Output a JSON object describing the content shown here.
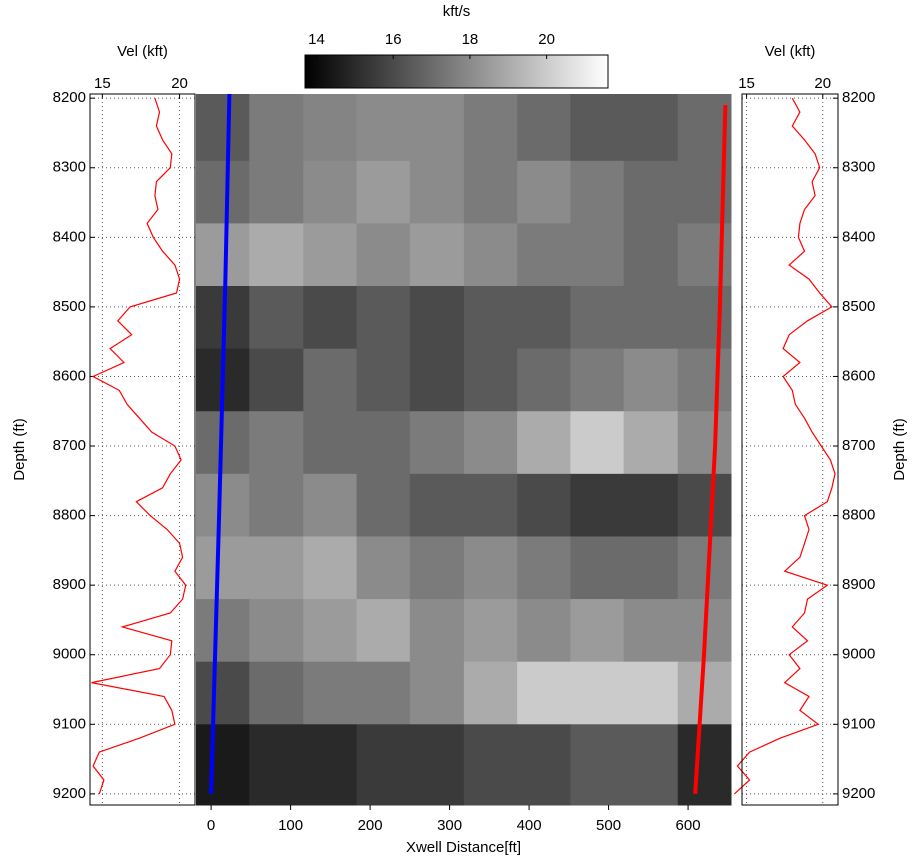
{
  "chart_data": [
    {
      "type": "line",
      "title": "Vel (kft)",
      "ylabel": "Depth (ft)",
      "xlim": [
        14.2,
        21.0
      ],
      "xticks": [
        15,
        20
      ],
      "ylim": [
        8194,
        9216
      ],
      "yticks": [
        8200,
        8300,
        8400,
        8500,
        8600,
        8700,
        8800,
        8900,
        9000,
        9100,
        9200
      ],
      "grid": true,
      "y": [
        8200,
        8220,
        8240,
        8260,
        8280,
        8300,
        8320,
        8340,
        8360,
        8380,
        8400,
        8420,
        8440,
        8460,
        8480,
        8500,
        8520,
        8540,
        8560,
        8580,
        8600,
        8620,
        8640,
        8660,
        8680,
        8700,
        8720,
        8740,
        8760,
        8780,
        8800,
        8820,
        8840,
        8860,
        8880,
        8900,
        8920,
        8940,
        8960,
        8980,
        9000,
        9020,
        9040,
        9060,
        9080,
        9100,
        9120,
        9140,
        9160,
        9180,
        9200
      ],
      "series": [
        {
          "color": "#ff0000",
          "values": [
            18.4,
            18.7,
            18.5,
            18.9,
            19.5,
            19.4,
            18.5,
            18.4,
            18.6,
            17.9,
            18.3,
            18.9,
            19.7,
            20.0,
            19.8,
            16.8,
            16.0,
            16.9,
            15.5,
            16.4,
            14.4,
            16.1,
            16.6,
            17.4,
            18.2,
            19.7,
            20.1,
            19.4,
            18.9,
            17.2,
            18.1,
            19.2,
            20.0,
            20.2,
            19.7,
            20.4,
            20.2,
            19.4,
            16.3,
            19.5,
            19.4,
            18.7,
            14.3,
            19.0,
            19.5,
            19.7,
            17.4,
            14.8,
            14.4,
            15.1,
            14.8
          ]
        }
      ]
    },
    {
      "type": "heatmap",
      "xlabel": "Xwell Distance[ft]",
      "xlim": [
        -19,
        654
      ],
      "xticks": [
        0,
        100,
        200,
        300,
        400,
        500,
        600
      ],
      "ylim": [
        8194,
        9216
      ],
      "x_edges": [
        -19,
        48,
        116,
        183,
        250,
        318,
        385,
        452,
        519,
        587,
        654
      ],
      "y_edges": [
        8194,
        8290,
        8380,
        8470,
        8560,
        8650,
        8740,
        8830,
        8920,
        9010,
        9100,
        9216
      ],
      "values": [
        [
          16.5,
          17.5,
          17.8,
          18,
          18,
          17.5,
          17,
          16.5,
          16.5,
          17
        ],
        [
          17,
          17.5,
          18,
          18.5,
          18,
          17.5,
          18,
          17.5,
          17,
          17
        ],
        [
          18.5,
          19,
          18.5,
          18,
          18.5,
          18,
          17.5,
          17.5,
          17,
          17.5
        ],
        [
          15.5,
          16.5,
          16,
          16.5,
          16,
          16.5,
          16.5,
          17,
          17,
          17
        ],
        [
          15,
          16,
          17,
          16.5,
          16,
          16.5,
          17,
          17.5,
          18,
          17.5
        ],
        [
          17,
          17.5,
          17,
          17,
          17.5,
          18,
          19,
          20,
          19,
          18
        ],
        [
          18,
          17.5,
          18,
          17,
          16.5,
          16.5,
          16,
          15.5,
          15.5,
          16
        ],
        [
          18.5,
          18.5,
          19,
          18,
          17.5,
          18,
          17.5,
          17,
          17,
          17.5
        ],
        [
          17.5,
          18,
          18.5,
          19,
          18,
          18.5,
          18,
          18.5,
          18,
          18
        ],
        [
          16,
          17,
          17.5,
          17.5,
          18,
          19,
          20,
          20,
          20,
          19
        ],
        [
          14.5,
          15,
          15,
          15.5,
          15.5,
          16,
          16,
          16.5,
          16.5,
          15
        ]
      ],
      "colorbar": {
        "label": "kft/s",
        "clim": [
          13.7,
          21.6
        ],
        "ticks": [
          14,
          16,
          18,
          20
        ]
      },
      "lines": [
        {
          "color": "#0000ff",
          "x": [
            23,
            18,
            10,
            0
          ],
          "y": [
            8194,
            8460,
            8800,
            9200
          ]
        },
        {
          "color": "#ff0000",
          "x": [
            647,
            640,
            634,
            620,
            609
          ],
          "y": [
            8210,
            8500,
            8700,
            9000,
            9200
          ]
        }
      ]
    },
    {
      "type": "line",
      "title": "Vel (kft)",
      "ylabel": "Depth (ft)",
      "xlim": [
        14.7,
        21.0
      ],
      "xticks": [
        15,
        20
      ],
      "ylim": [
        8194,
        9216
      ],
      "yticks": [
        8200,
        8300,
        8400,
        8500,
        8600,
        8700,
        8800,
        8900,
        9000,
        9100,
        9200
      ],
      "grid": true,
      "y": [
        8200,
        8220,
        8240,
        8260,
        8280,
        8300,
        8320,
        8340,
        8360,
        8380,
        8400,
        8420,
        8440,
        8460,
        8480,
        8500,
        8520,
        8540,
        8560,
        8580,
        8600,
        8620,
        8640,
        8660,
        8680,
        8700,
        8720,
        8740,
        8760,
        8780,
        8800,
        8820,
        8840,
        8860,
        8880,
        8900,
        8920,
        8940,
        8960,
        8980,
        9000,
        9020,
        9040,
        9060,
        9080,
        9100,
        9120,
        9140,
        9160,
        9180,
        9200
      ],
      "series": [
        {
          "color": "#ff0000",
          "values": [
            18.0,
            18.5,
            18.0,
            18.8,
            19.5,
            19.8,
            19.3,
            19.5,
            18.8,
            18.5,
            18.4,
            18.8,
            17.8,
            19.1,
            19.8,
            20.6,
            19.0,
            17.8,
            17.4,
            18.5,
            17.4,
            18.0,
            18.2,
            18.8,
            19.3,
            19.9,
            20.5,
            20.8,
            20.6,
            20.3,
            18.8,
            19.1,
            18.8,
            18.5,
            17.5,
            20.3,
            19.0,
            18.8,
            18.0,
            19.0,
            17.8,
            18.5,
            17.5,
            19.1,
            18.5,
            19.7,
            17.2,
            15.2,
            14.4,
            15.2,
            14.2
          ]
        }
      ]
    }
  ]
}
